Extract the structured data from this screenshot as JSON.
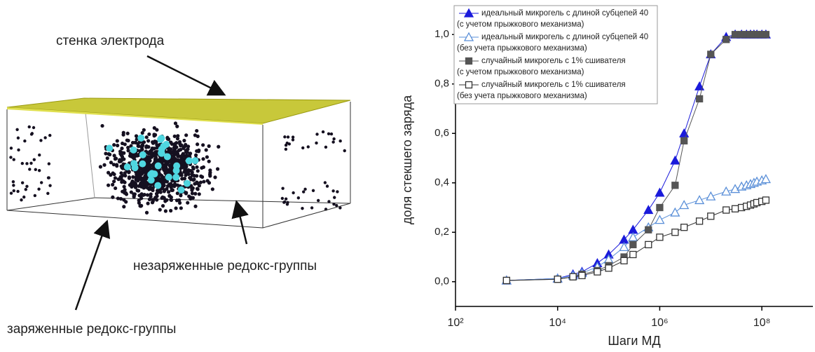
{
  "illustration": {
    "labels": [
      "стенка электрода",
      "незаряженные редокс-группы",
      "заряженные редокс-группы"
    ]
  },
  "chart_data": {
    "type": "line",
    "xlabel": "Шаги МД",
    "ylabel": "доля стекшего заряда",
    "xscale": "log",
    "xlim": [
      100,
      1000000000
    ],
    "ylim": [
      -0.1,
      1.1
    ],
    "xticks": [
      {
        "value": 100,
        "label": "10²"
      },
      {
        "value": 10000,
        "label": "10⁴"
      },
      {
        "value": 1000000,
        "label": "10⁶"
      },
      {
        "value": 100000000,
        "label": "10⁸"
      }
    ],
    "yticks": [
      {
        "value": 0,
        "label": "0,0"
      },
      {
        "value": 0.2,
        "label": "0,2"
      },
      {
        "value": 0.4,
        "label": "0,4"
      },
      {
        "value": 0.6,
        "label": "0,6"
      },
      {
        "value": 0.8,
        "label": "0,8"
      },
      {
        "value": 1.0,
        "label": "1,0"
      }
    ],
    "legend": "upper left",
    "x": [
      1000,
      10000,
      20000,
      30000,
      60000,
      100000,
      200000,
      300000,
      600000,
      1000000,
      2000000,
      3000000,
      6000000,
      10000000,
      20000000,
      30000000,
      40000000,
      50000000,
      60000000,
      70000000,
      80000000,
      100000000,
      120000000
    ],
    "series": [
      {
        "name": "идеальный микрогель с длиной субцепей 40",
        "note": "(с учетом прыжкового механизма)",
        "color": "#1a1adb",
        "marker": "triangle",
        "filled": true,
        "values": [
          0.005,
          0.013,
          0.03,
          0.04,
          0.075,
          0.11,
          0.17,
          0.21,
          0.29,
          0.36,
          0.49,
          0.6,
          0.79,
          0.92,
          0.99,
          1.0,
          1.0,
          1.0,
          1.0,
          1.0,
          1.0,
          1.0,
          1.0
        ]
      },
      {
        "name": "идеальный микрогель с длиной субцепей 40",
        "note": "(без учета прыжкового механизма)",
        "color": "#5a8fd8",
        "marker": "triangle",
        "filled": false,
        "values": [
          0.005,
          0.013,
          0.025,
          0.035,
          0.06,
          0.09,
          0.14,
          0.18,
          0.22,
          0.25,
          0.28,
          0.31,
          0.33,
          0.345,
          0.365,
          0.375,
          0.385,
          0.39,
          0.395,
          0.4,
          0.405,
          0.41,
          0.415
        ]
      },
      {
        "name": "случайный микрогель с 1% сшивателя",
        "note": "(с учетом прыжкового механизма)",
        "color": "#555555",
        "marker": "square",
        "filled": true,
        "values": [
          0.005,
          0.01,
          0.02,
          0.03,
          0.045,
          0.065,
          0.1,
          0.15,
          0.21,
          0.3,
          0.39,
          0.57,
          0.74,
          0.92,
          0.98,
          1.0,
          1.0,
          1.0,
          1.0,
          1.0,
          1.0,
          1.0,
          1.0
        ]
      },
      {
        "name": "случайный микрогель с 1% сшивателя",
        "note": "(без учета прыжкового механизма)",
        "color": "#333333",
        "marker": "square",
        "filled": false,
        "values": [
          0.005,
          0.01,
          0.02,
          0.025,
          0.04,
          0.055,
          0.085,
          0.11,
          0.15,
          0.18,
          0.2,
          0.22,
          0.245,
          0.265,
          0.29,
          0.295,
          0.3,
          0.305,
          0.31,
          0.315,
          0.32,
          0.325,
          0.33
        ]
      }
    ]
  }
}
